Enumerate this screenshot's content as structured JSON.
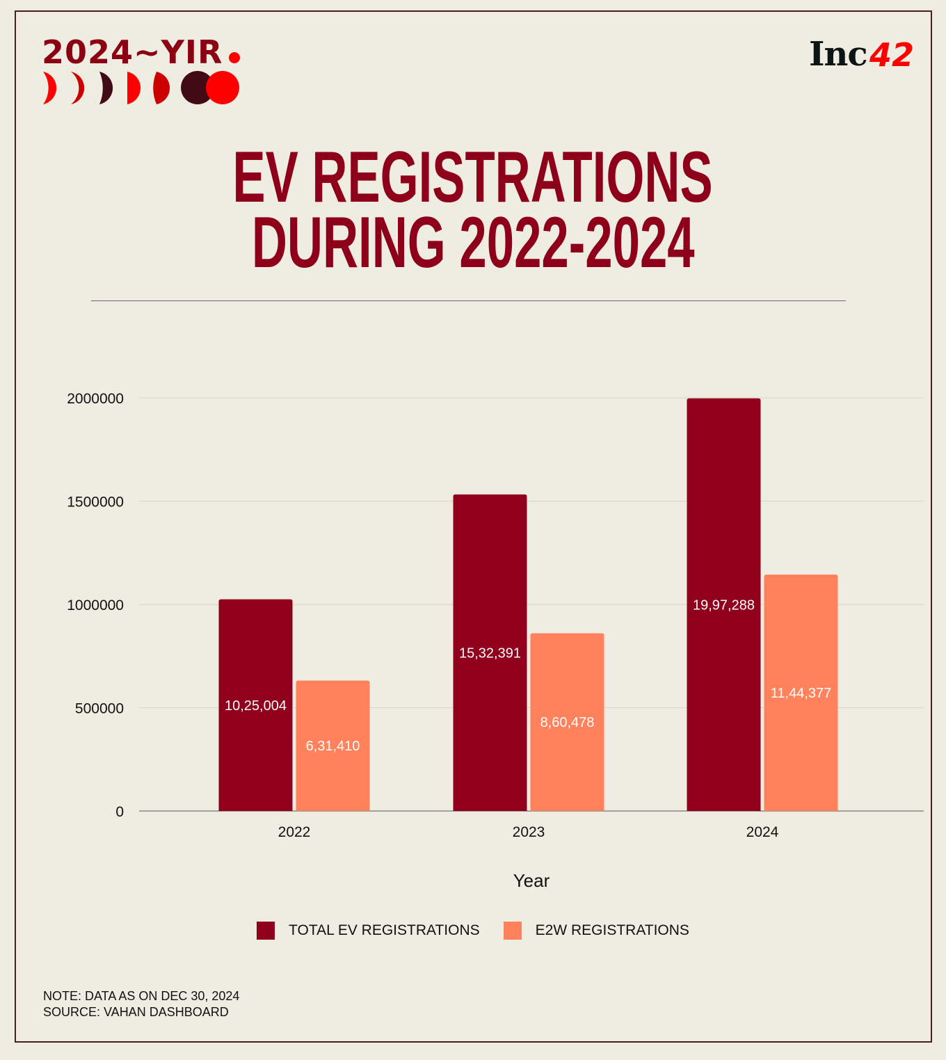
{
  "branding": {
    "yir_logo": "2024~YIR",
    "publisher_logo": "Inc",
    "publisher_logo_accent": "42"
  },
  "colors": {
    "title": "#8e0019",
    "total": "#90001c",
    "e2w": "#ff825c",
    "background": "#efece1"
  },
  "chart_data": {
    "type": "bar",
    "title_line1": "EV REGISTRATIONS",
    "title_line2": "DURING 2022-2024",
    "xlabel": "Year",
    "ylabel": "",
    "categories": [
      "2022",
      "2023",
      "2024"
    ],
    "ylim": [
      0,
      2000000
    ],
    "yticks": [
      "0",
      "500000",
      "1000000",
      "1500000",
      "2000000"
    ],
    "ytick_values": [
      0,
      500000,
      1000000,
      1500000,
      2000000
    ],
    "grid": true,
    "legend_position": "bottom",
    "series": [
      {
        "name": "TOTAL EV REGISTRATIONS",
        "values": [
          1025004,
          1532391,
          1997288
        ],
        "labels": [
          "10,25,004",
          "15,32,391",
          "19,97,288"
        ]
      },
      {
        "name": "E2W REGISTRATIONS",
        "values": [
          631410,
          860478,
          1144377
        ],
        "labels": [
          "6,31,410",
          "8,60,478",
          "11,44,377"
        ]
      }
    ]
  },
  "notes": {
    "note": "NOTE: DATA AS ON DEC 30, 2024",
    "source": "SOURCE: VAHAN DASHBOARD"
  }
}
